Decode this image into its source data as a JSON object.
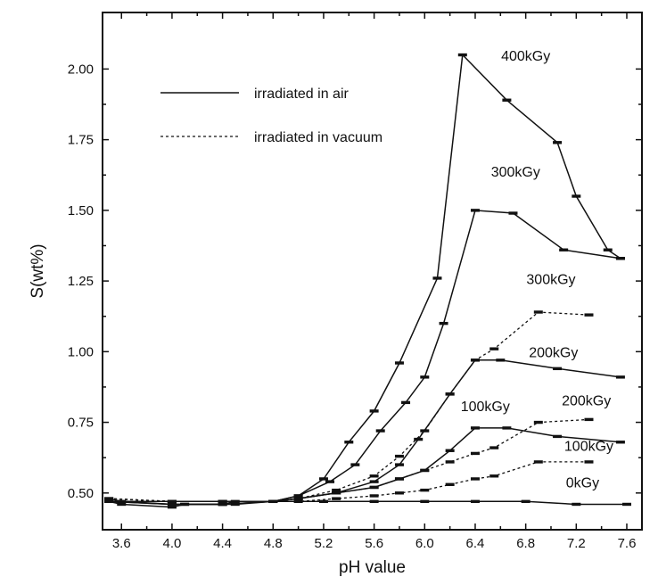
{
  "chart_data": {
    "type": "line",
    "title": "",
    "xlabel": "pH value",
    "ylabel": "S(wt%)",
    "xlim": [
      3.45,
      7.72
    ],
    "ylim": [
      0.37,
      2.2
    ],
    "xticks": [
      3.6,
      4.0,
      4.4,
      4.8,
      5.2,
      5.6,
      6.0,
      6.4,
      6.8,
      7.2,
      7.6
    ],
    "xtick_labels": [
      "3.6",
      "4.0",
      "4.4",
      "4.8",
      "5.2",
      "5.6",
      "6.0",
      "6.4",
      "6.8",
      "7.2",
      "7.6"
    ],
    "yticks": [
      0.5,
      0.75,
      1.0,
      1.25,
      1.5,
      1.75,
      2.0
    ],
    "ytick_labels": [
      "0.50",
      "0.75",
      "1.00",
      "1.25",
      "1.50",
      "1.75",
      "2.00"
    ],
    "legend": {
      "placement": "top-left",
      "entries": [
        {
          "label": "irradiated in air",
          "style": "solid"
        },
        {
          "label": "irradiated in vacuum",
          "style": "dashed"
        }
      ]
    },
    "series": [
      {
        "name": "400kGy",
        "environment": "air",
        "style": "solid",
        "x": [
          3.5,
          3.6,
          4.0,
          4.1,
          4.4,
          4.5,
          4.8,
          5.0,
          5.2,
          5.4,
          5.6,
          5.8,
          6.1,
          6.3,
          6.65,
          7.05,
          7.2,
          7.45,
          7.55
        ],
        "y": [
          0.47,
          0.46,
          0.45,
          0.46,
          0.46,
          0.46,
          0.47,
          0.49,
          0.55,
          0.68,
          0.79,
          0.96,
          1.26,
          2.05,
          1.89,
          1.74,
          1.55,
          1.36,
          1.33
        ]
      },
      {
        "name": "300kGy",
        "environment": "air",
        "style": "solid",
        "x": [
          3.5,
          3.6,
          4.0,
          4.1,
          4.4,
          4.5,
          4.8,
          5.0,
          5.25,
          5.45,
          5.65,
          5.85,
          6.0,
          6.15,
          6.4,
          6.7,
          7.1,
          7.55
        ],
        "y": [
          0.48,
          0.47,
          0.46,
          0.46,
          0.46,
          0.47,
          0.47,
          0.49,
          0.54,
          0.6,
          0.72,
          0.82,
          0.91,
          1.1,
          1.5,
          1.49,
          1.36,
          1.33
        ]
      },
      {
        "name": "300kGy",
        "environment": "vacuum",
        "style": "dashed",
        "x": [
          3.5,
          4.0,
          4.4,
          4.8,
          5.0,
          5.3,
          5.6,
          5.8,
          6.0,
          6.2,
          6.4,
          6.55,
          6.9,
          7.3
        ],
        "y": [
          0.48,
          0.47,
          0.47,
          0.47,
          0.48,
          0.51,
          0.56,
          0.63,
          0.72,
          0.85,
          0.97,
          1.01,
          1.14,
          1.13
        ]
      },
      {
        "name": "200kGy",
        "environment": "air",
        "style": "solid",
        "x": [
          3.5,
          4.0,
          4.4,
          4.8,
          5.0,
          5.3,
          5.6,
          5.8,
          5.95,
          6.2,
          6.4,
          6.6,
          7.05,
          7.55
        ],
        "y": [
          0.47,
          0.46,
          0.46,
          0.47,
          0.48,
          0.5,
          0.54,
          0.6,
          0.69,
          0.85,
          0.97,
          0.97,
          0.94,
          0.91
        ]
      },
      {
        "name": "200kGy",
        "environment": "vacuum",
        "style": "dashed",
        "x": [
          3.5,
          4.0,
          4.4,
          4.8,
          5.0,
          5.3,
          5.6,
          5.8,
          6.0,
          6.2,
          6.4,
          6.55,
          6.9,
          7.3
        ],
        "y": [
          0.48,
          0.47,
          0.47,
          0.47,
          0.48,
          0.5,
          0.52,
          0.55,
          0.58,
          0.61,
          0.64,
          0.66,
          0.75,
          0.76
        ]
      },
      {
        "name": "100kGy",
        "environment": "air",
        "style": "solid",
        "x": [
          3.5,
          4.0,
          4.4,
          4.8,
          5.0,
          5.3,
          5.6,
          5.8,
          6.0,
          6.2,
          6.4,
          6.65,
          7.05,
          7.55
        ],
        "y": [
          0.47,
          0.46,
          0.46,
          0.47,
          0.48,
          0.5,
          0.52,
          0.55,
          0.58,
          0.65,
          0.73,
          0.73,
          0.7,
          0.68
        ]
      },
      {
        "name": "100kGy",
        "environment": "vacuum",
        "style": "dashed",
        "x": [
          3.5,
          4.0,
          4.4,
          4.8,
          5.0,
          5.3,
          5.6,
          5.8,
          6.0,
          6.2,
          6.4,
          6.55,
          6.9,
          7.3
        ],
        "y": [
          0.48,
          0.47,
          0.47,
          0.47,
          0.47,
          0.48,
          0.49,
          0.5,
          0.51,
          0.53,
          0.55,
          0.56,
          0.61,
          0.61
        ]
      },
      {
        "name": "0kGy",
        "environment": "air",
        "style": "solid",
        "x": [
          3.5,
          4.0,
          4.4,
          4.8,
          5.2,
          5.6,
          6.0,
          6.4,
          6.8,
          7.2,
          7.6
        ],
        "y": [
          0.47,
          0.47,
          0.47,
          0.47,
          0.47,
          0.47,
          0.47,
          0.47,
          0.47,
          0.46,
          0.46
        ]
      }
    ],
    "annotations": [
      {
        "text": "400kGy",
        "x": 6.8,
        "y": 2.03
      },
      {
        "text": "300kGy",
        "x": 6.72,
        "y": 1.62
      },
      {
        "text": "300kGy",
        "x": 7.0,
        "y": 1.24
      },
      {
        "text": "200kGy",
        "x": 7.02,
        "y": 0.98
      },
      {
        "text": "100kGy",
        "x": 6.48,
        "y": 0.79
      },
      {
        "text": "200kGy",
        "x": 7.28,
        "y": 0.81
      },
      {
        "text": "100kGy",
        "x": 7.3,
        "y": 0.65
      },
      {
        "text": "0kGy",
        "x": 7.25,
        "y": 0.52
      }
    ]
  }
}
